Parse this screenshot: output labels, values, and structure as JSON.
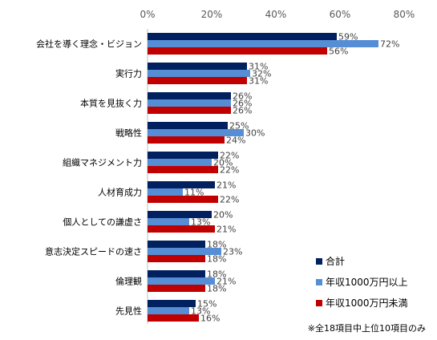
{
  "chart_data": {
    "type": "bar",
    "orientation": "horizontal",
    "categories": [
      "会社を導く理念・ビジョン",
      "実行力",
      "本質を見抜く力",
      "戦略性",
      "組織マネジメント力",
      "人材育成力",
      "個人としての謙虚さ",
      "意志決定スピードの速さ",
      "倫理観",
      "先見性"
    ],
    "series": [
      {
        "name": "合計",
        "color": "#002060",
        "values": [
          59,
          31,
          26,
          25,
          22,
          21,
          20,
          18,
          18,
          15
        ]
      },
      {
        "name": "年収1000万円以上",
        "color": "#558ED5",
        "values": [
          72,
          32,
          26,
          30,
          20,
          11,
          13,
          23,
          21,
          13
        ]
      },
      {
        "name": "年収1000万円未満",
        "color": "#C00000",
        "values": [
          56,
          31,
          26,
          24,
          22,
          22,
          21,
          18,
          18,
          16
        ]
      }
    ],
    "xlim": [
      0,
      80
    ],
    "xticks": [
      "0%",
      "20%",
      "40%",
      "60%",
      "80%"
    ],
    "xtick_values": [
      0,
      20,
      40,
      60,
      80
    ],
    "value_suffix": "%",
    "grid": false,
    "legend_position": "bottom-right",
    "note": "※全18項目中上位10項目のみ"
  }
}
